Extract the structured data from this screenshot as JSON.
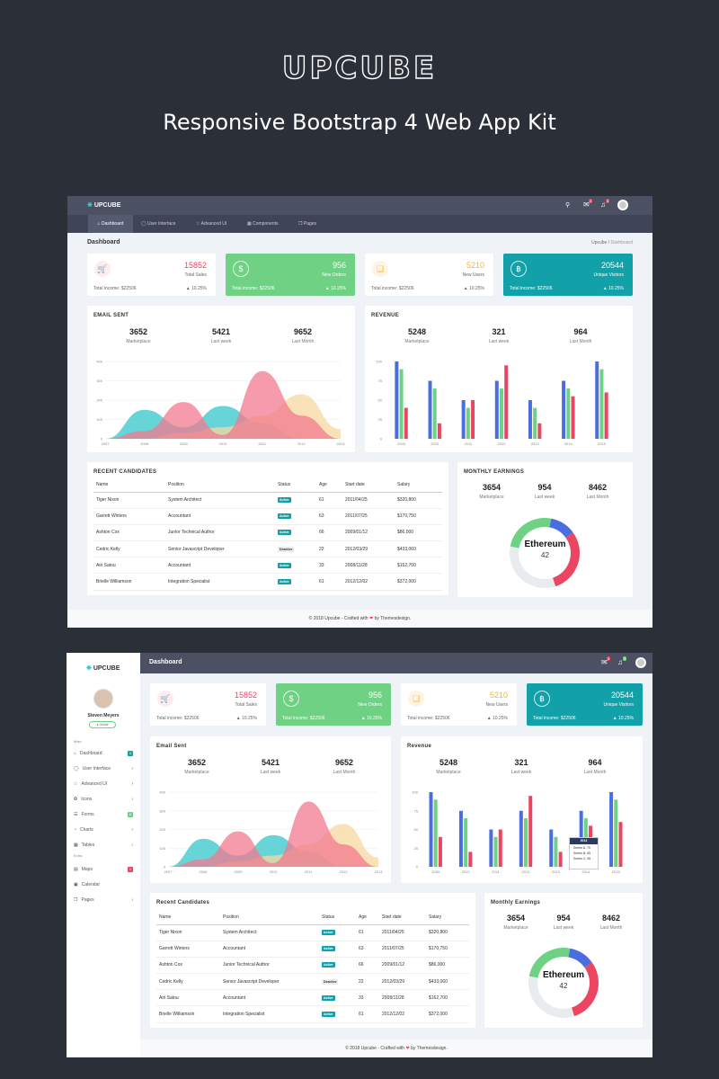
{
  "hero": {
    "title": "UPCUBE",
    "subtitle": "Responsive Bootstrap 4  Web App Kit"
  },
  "colors": {
    "background": "#2b3038",
    "topbar": "#4b5063",
    "navbar": "#3f4456",
    "green": "#6fd183",
    "teal": "#12a0a9",
    "red": "#ec4561",
    "orange": "#f8b425",
    "blue": "#4a6ee0"
  },
  "brand": {
    "name": "UPCUBE"
  },
  "nav": {
    "items": [
      {
        "label": "Dashboard",
        "icon": "home-icon"
      },
      {
        "label": "User Interface",
        "icon": "bulb-icon"
      },
      {
        "label": "Advanced UI",
        "icon": "star-icon"
      },
      {
        "label": "Components",
        "icon": "grid-icon"
      },
      {
        "label": "Pages",
        "icon": "pages-icon"
      }
    ]
  },
  "header": {
    "badges": {
      "mail": "3",
      "bell": "3"
    },
    "icons": [
      "search-icon",
      "mail-icon",
      "bell-icon",
      "avatar"
    ]
  },
  "page": {
    "title": "Dashboard",
    "breadcrumb": [
      "Upcube",
      "Dashboard"
    ]
  },
  "mini_stats": [
    {
      "value": "15852",
      "label": "Total Sales",
      "income": "Total income: $22506",
      "change": "10.25%",
      "icon": "cart-icon"
    },
    {
      "value": "956",
      "label": "New Orders",
      "income": "Total income: $22506",
      "change": "10.25%",
      "icon": "dollar-icon"
    },
    {
      "value": "5210",
      "label": "New Users",
      "income": "Total income: $22506",
      "change": "10.25%",
      "icon": "cube-icon"
    },
    {
      "value": "20544",
      "label": "Unique Visitors",
      "income": "Total income: $22506",
      "change": "10.25%",
      "icon": "bitcoin-icon"
    }
  ],
  "email_sent": {
    "title_upper": "EMAIL SENT",
    "title": "Email Sent",
    "stats": [
      {
        "value": "3652",
        "label": "Marketplace"
      },
      {
        "value": "5421",
        "label": "Last week"
      },
      {
        "value": "9652",
        "label": "Last Month"
      }
    ]
  },
  "revenue": {
    "title_upper": "REVENUE",
    "title": "Revenue",
    "stats": [
      {
        "value": "5248",
        "label": "Marketplace"
      },
      {
        "value": "321",
        "label": "Last week"
      },
      {
        "value": "964",
        "label": "Last Month"
      }
    ],
    "tooltip": {
      "year": "2014",
      "lines": [
        "Series A: 75",
        "Series B: 65",
        "Series C: 55"
      ]
    }
  },
  "candidates": {
    "title_upper": "RECENT CANDIDATES",
    "title": "Recent Candidates",
    "columns": [
      "Name",
      "Position",
      "Status",
      "Age",
      "Start date",
      "Salary"
    ],
    "rows": [
      [
        "Tiger Nixon",
        "System Architect",
        "Active",
        "61",
        "2011/04/25",
        "$320,800"
      ],
      [
        "Garrett Winters",
        "Accountant",
        "Active",
        "63",
        "2011/07/25",
        "$170,750"
      ],
      [
        "Ashton Cox",
        "Junior Technical Author",
        "Active",
        "66",
        "2009/01/12",
        "$86,000"
      ],
      [
        "Cedric Kelly",
        "Senior Javascript Developer",
        "Deactive",
        "22",
        "2012/03/29",
        "$433,060"
      ],
      [
        "Airi Satou",
        "Accountant",
        "Active",
        "33",
        "2008/11/28",
        "$162,700"
      ],
      [
        "Brielle Williamson",
        "Integration Specialist",
        "Active",
        "61",
        "2012/12/02",
        "$372,000"
      ]
    ]
  },
  "earnings": {
    "title_upper": "MONTHLY EARNINGS",
    "title": "Monthly Earnings",
    "stats": [
      {
        "value": "3654",
        "label": "Marketplace"
      },
      {
        "value": "954",
        "label": "Last week"
      },
      {
        "value": "8462",
        "label": "Last Month"
      }
    ],
    "center_label": "Ethereum",
    "center_value": "42"
  },
  "footer": {
    "before": "© 2018 Upcube - Crafted with",
    "after": "by Themesdesign."
  },
  "sidebar": {
    "user": {
      "name": "Steven Meyers",
      "status": "Online"
    },
    "sections": {
      "main": "Main",
      "extra": "Extra"
    },
    "items": [
      {
        "label": "Dashboard",
        "icon": "home-icon",
        "badge": "3"
      },
      {
        "label": "User Interface",
        "icon": "bulb-icon"
      },
      {
        "label": "Advanced UI",
        "icon": "star-icon"
      },
      {
        "label": "Icons",
        "icon": "icons-icon"
      },
      {
        "label": "Forms",
        "icon": "forms-icon",
        "badge": "8"
      },
      {
        "label": "Charts",
        "icon": "chart-icon"
      },
      {
        "label": "Tables",
        "icon": "table-icon"
      },
      {
        "label": "Maps",
        "icon": "map-icon",
        "badge": "2"
      },
      {
        "label": "Calendar",
        "icon": "calendar-icon"
      },
      {
        "label": "Pages",
        "icon": "pages-icon"
      }
    ]
  },
  "chart_data": [
    {
      "type": "area",
      "x": [
        2007,
        2008,
        2009,
        2010,
        2011,
        2012,
        2013
      ],
      "yticks": [
        0,
        100,
        200,
        300,
        400
      ],
      "ylim": [
        0,
        400
      ],
      "series": [
        {
          "color": "#34c7c9",
          "values": [
            0,
            150,
            60,
            170,
            80,
            0,
            0
          ]
        },
        {
          "color": "#f7d7a0",
          "values": [
            0,
            0,
            30,
            60,
            120,
            230,
            50
          ]
        },
        {
          "color": "#f27a8f",
          "values": [
            0,
            40,
            190,
            20,
            350,
            120,
            0
          ]
        }
      ]
    },
    {
      "type": "bar",
      "categories": [
        "2009",
        "2010",
        "2011",
        "2012",
        "2013",
        "2014",
        "2015"
      ],
      "yticks": [
        0,
        25,
        50,
        75,
        100
      ],
      "ylim": [
        0,
        100
      ],
      "series": [
        {
          "name": "Series A",
          "color": "#4a6ee0",
          "values": [
            100,
            75,
            50,
            75,
            50,
            75,
            100
          ]
        },
        {
          "name": "Series B",
          "color": "#6fd183",
          "values": [
            90,
            65,
            40,
            65,
            40,
            65,
            90
          ]
        },
        {
          "name": "Series C",
          "color": "#ec4561",
          "values": [
            40,
            20,
            50,
            95,
            20,
            55,
            60
          ]
        }
      ]
    },
    {
      "type": "pie",
      "slices": [
        {
          "color": "#6fd183",
          "value": 25
        },
        {
          "color": "#4a6ee0",
          "value": 12
        },
        {
          "color": "#ec4561",
          "value": 30
        },
        {
          "color": "#e9ecef",
          "value": 33
        }
      ]
    }
  ]
}
